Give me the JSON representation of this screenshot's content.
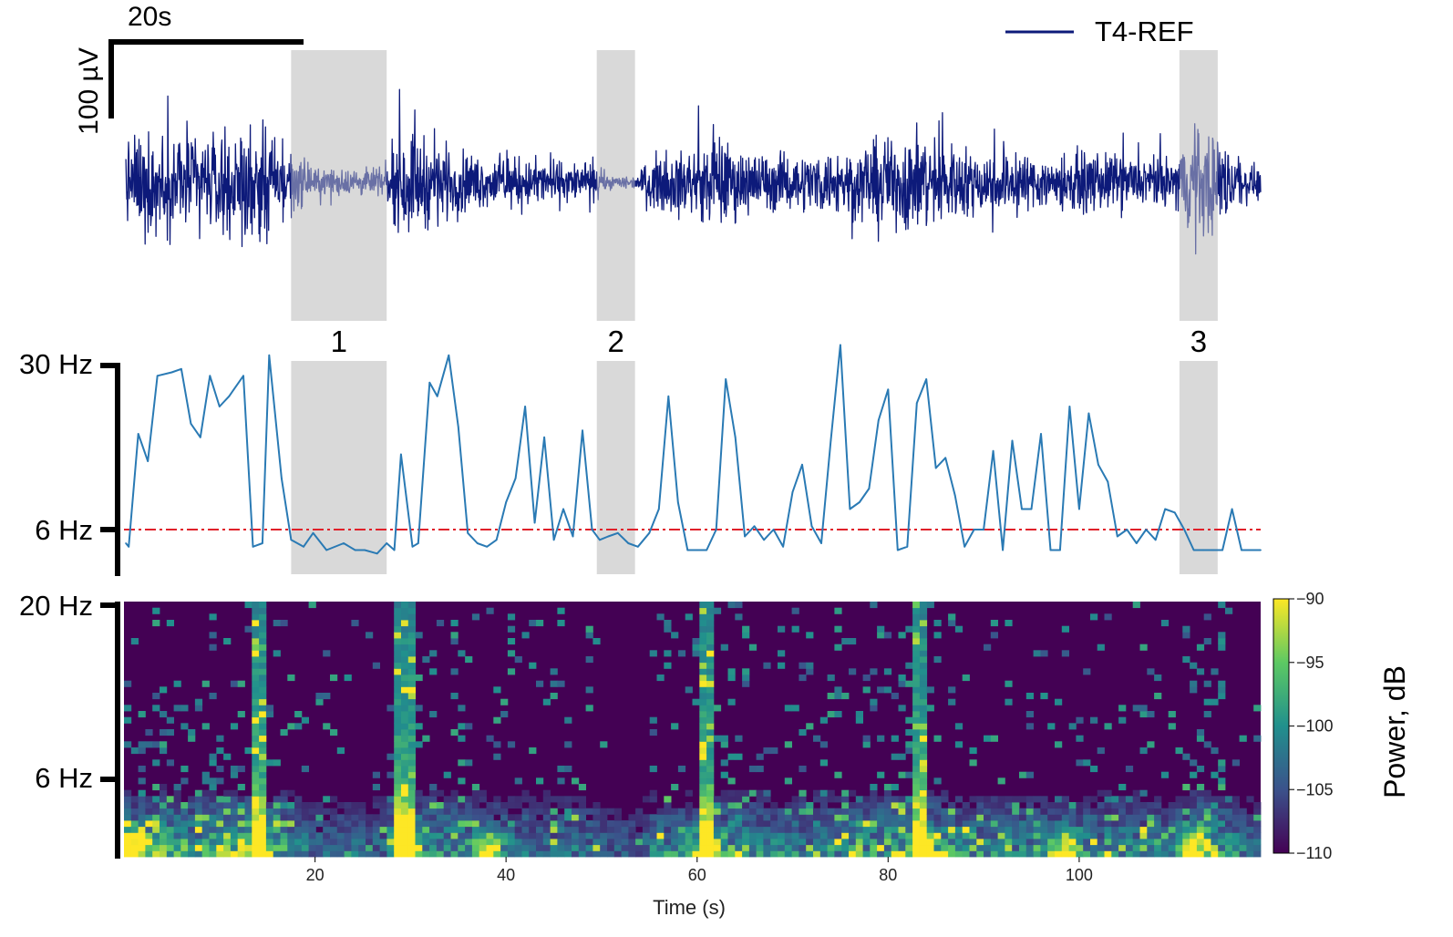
{
  "chart_data": [
    {
      "type": "line",
      "panel": "eeg-trace",
      "series": [
        {
          "name": "T4-REF",
          "color": "#0d1a7a"
        }
      ],
      "legend_position": "top-right",
      "scale_bar": {
        "time_label": "20s",
        "time_value_s": 20,
        "amp_label": "100 µV",
        "amp_value_uV": 100
      },
      "signal_envelope": {
        "x": [
          1,
          4,
          8,
          12,
          14,
          16,
          17.5,
          20,
          24,
          27.5,
          28.5,
          30,
          32,
          35,
          38,
          42,
          46,
          49,
          51,
          53.5,
          56,
          60,
          62,
          64,
          67,
          70,
          74,
          78,
          82,
          83.5,
          85,
          89,
          93,
          97,
          101,
          106,
          110,
          112,
          114,
          117,
          119
        ],
        "amplitude_uV": [
          90,
          95,
          88,
          92,
          105,
          80,
          60,
          25,
          25,
          25,
          85,
          95,
          80,
          60,
          45,
          45,
          40,
          30,
          12,
          12,
          55,
          60,
          90,
          65,
          55,
          50,
          60,
          70,
          95,
          100,
          80,
          60,
          55,
          50,
          55,
          45,
          45,
          105,
          100,
          40,
          25
        ]
      },
      "highlighted_epochs": [
        {
          "label": "1",
          "start_s": 17.5,
          "end_s": 27.5
        },
        {
          "label": "2",
          "start_s": 49.5,
          "end_s": 53.5
        },
        {
          "label": "3",
          "start_s": 110.5,
          "end_s": 114.5
        }
      ]
    },
    {
      "type": "line",
      "panel": "peak-frequency",
      "ytick_labels": [
        "30 Hz",
        "6 Hz"
      ],
      "ytick_values": [
        30,
        6
      ],
      "threshold": {
        "value": 6,
        "color": "#e0202a",
        "style": "dash-dot"
      },
      "series": [
        {
          "color": "#2a7ab4",
          "x": [
            0.2,
            0.5,
            1.5,
            2.5,
            3.5,
            5.0,
            6.0,
            7.0,
            8.0,
            9.0,
            10.0,
            11.0,
            12.5,
            13.5,
            14.5,
            15.2,
            16.5,
            17.5,
            18.8,
            19.8,
            21.2,
            23.0,
            24.2,
            25.2,
            26.5,
            27.5,
            28.3,
            29.0,
            30.2,
            30.8,
            32.0,
            32.8,
            34.0,
            35.0,
            36.0,
            37.0,
            38.0,
            39.0,
            40.0,
            41.0,
            42.0,
            43.0,
            44.0,
            45.0,
            46.0,
            47.0,
            48.0,
            49.0,
            49.8,
            50.7,
            51.7,
            52.8,
            53.8,
            55.0,
            56.0,
            57.0,
            58.0,
            59.0,
            60.0,
            61.0,
            62.0,
            63.0,
            64.0,
            65.0,
            66.0,
            67.0,
            68.0,
            69.0,
            70.0,
            71.0,
            72.0,
            73.0,
            74.0,
            75.0,
            76.0,
            77.0,
            78.0,
            79.0,
            80.0,
            81.0,
            82.0,
            83.0,
            84.0,
            85.0,
            86.0,
            87.0,
            88.0,
            89.0,
            90.0,
            91.0,
            92.0,
            93.0,
            94.0,
            95.0,
            96.0,
            97.0,
            98.0,
            99.0,
            100.0,
            101.0,
            102.0,
            103.0,
            104.0,
            105.0,
            106.0,
            107.0,
            108.0,
            109.0,
            110.0,
            111.0,
            112.0,
            113.0,
            114.0,
            115.0,
            116.0,
            117.0,
            119.0
          ],
          "y": [
            4.0,
            3.5,
            20.0,
            16.0,
            28.5,
            29.0,
            29.5,
            21.5,
            19.5,
            28.5,
            24.0,
            25.5,
            28.5,
            3.5,
            4.0,
            31.5,
            13.5,
            4.5,
            3.5,
            5.5,
            3.0,
            4.0,
            3.0,
            3.0,
            2.5,
            4.0,
            3.0,
            17.0,
            3.5,
            4.0,
            27.5,
            25.5,
            31.5,
            21.0,
            5.5,
            4.0,
            3.5,
            4.5,
            10.0,
            13.5,
            24.0,
            7.0,
            19.5,
            4.5,
            9.0,
            5.0,
            20.5,
            6.0,
            4.5,
            5.0,
            5.5,
            4.0,
            3.5,
            5.5,
            9.0,
            25.5,
            10.0,
            3.0,
            3.0,
            3.0,
            6.0,
            28.0,
            19.5,
            5.0,
            6.5,
            4.5,
            6.0,
            3.5,
            11.5,
            15.5,
            6.5,
            4.0,
            19.0,
            33.0,
            9.0,
            10.0,
            12.0,
            22.0,
            26.5,
            3.0,
            3.5,
            24.5,
            28.0,
            15.0,
            16.5,
            11.0,
            3.5,
            6.0,
            6.0,
            17.5,
            3.0,
            19.0,
            9.0,
            9.0,
            20.0,
            3.0,
            3.0,
            24.0,
            9.0,
            23.0,
            15.5,
            13.0,
            5.0,
            6.0,
            4.0,
            6.0,
            4.5,
            9.0,
            8.5,
            6.0,
            3.0,
            3.0,
            3.0,
            3.0,
            9.0,
            3.0,
            3.0
          ]
        }
      ]
    },
    {
      "type": "heatmap",
      "panel": "spectrogram",
      "xlabel": "Time (s)",
      "xticks": [
        20,
        40,
        60,
        80,
        100
      ],
      "xlim": [
        0,
        119
      ],
      "ytick_labels": [
        "20 Hz",
        "6 Hz"
      ],
      "ytick_values": [
        20,
        6
      ],
      "ylim": [
        0,
        20
      ],
      "colormap": "viridis",
      "colorbar": {
        "label": "Power, dB",
        "ticks": [
          -90,
          -95,
          -100,
          -105,
          -110
        ],
        "range": [
          -110,
          -90
        ]
      },
      "broadband_bursts_s": [
        14,
        29.5,
        61,
        83.5
      ],
      "low_freq_hotspots_s": [
        1,
        14,
        29.5,
        38,
        61,
        83.5,
        98.5,
        112
      ]
    }
  ]
}
